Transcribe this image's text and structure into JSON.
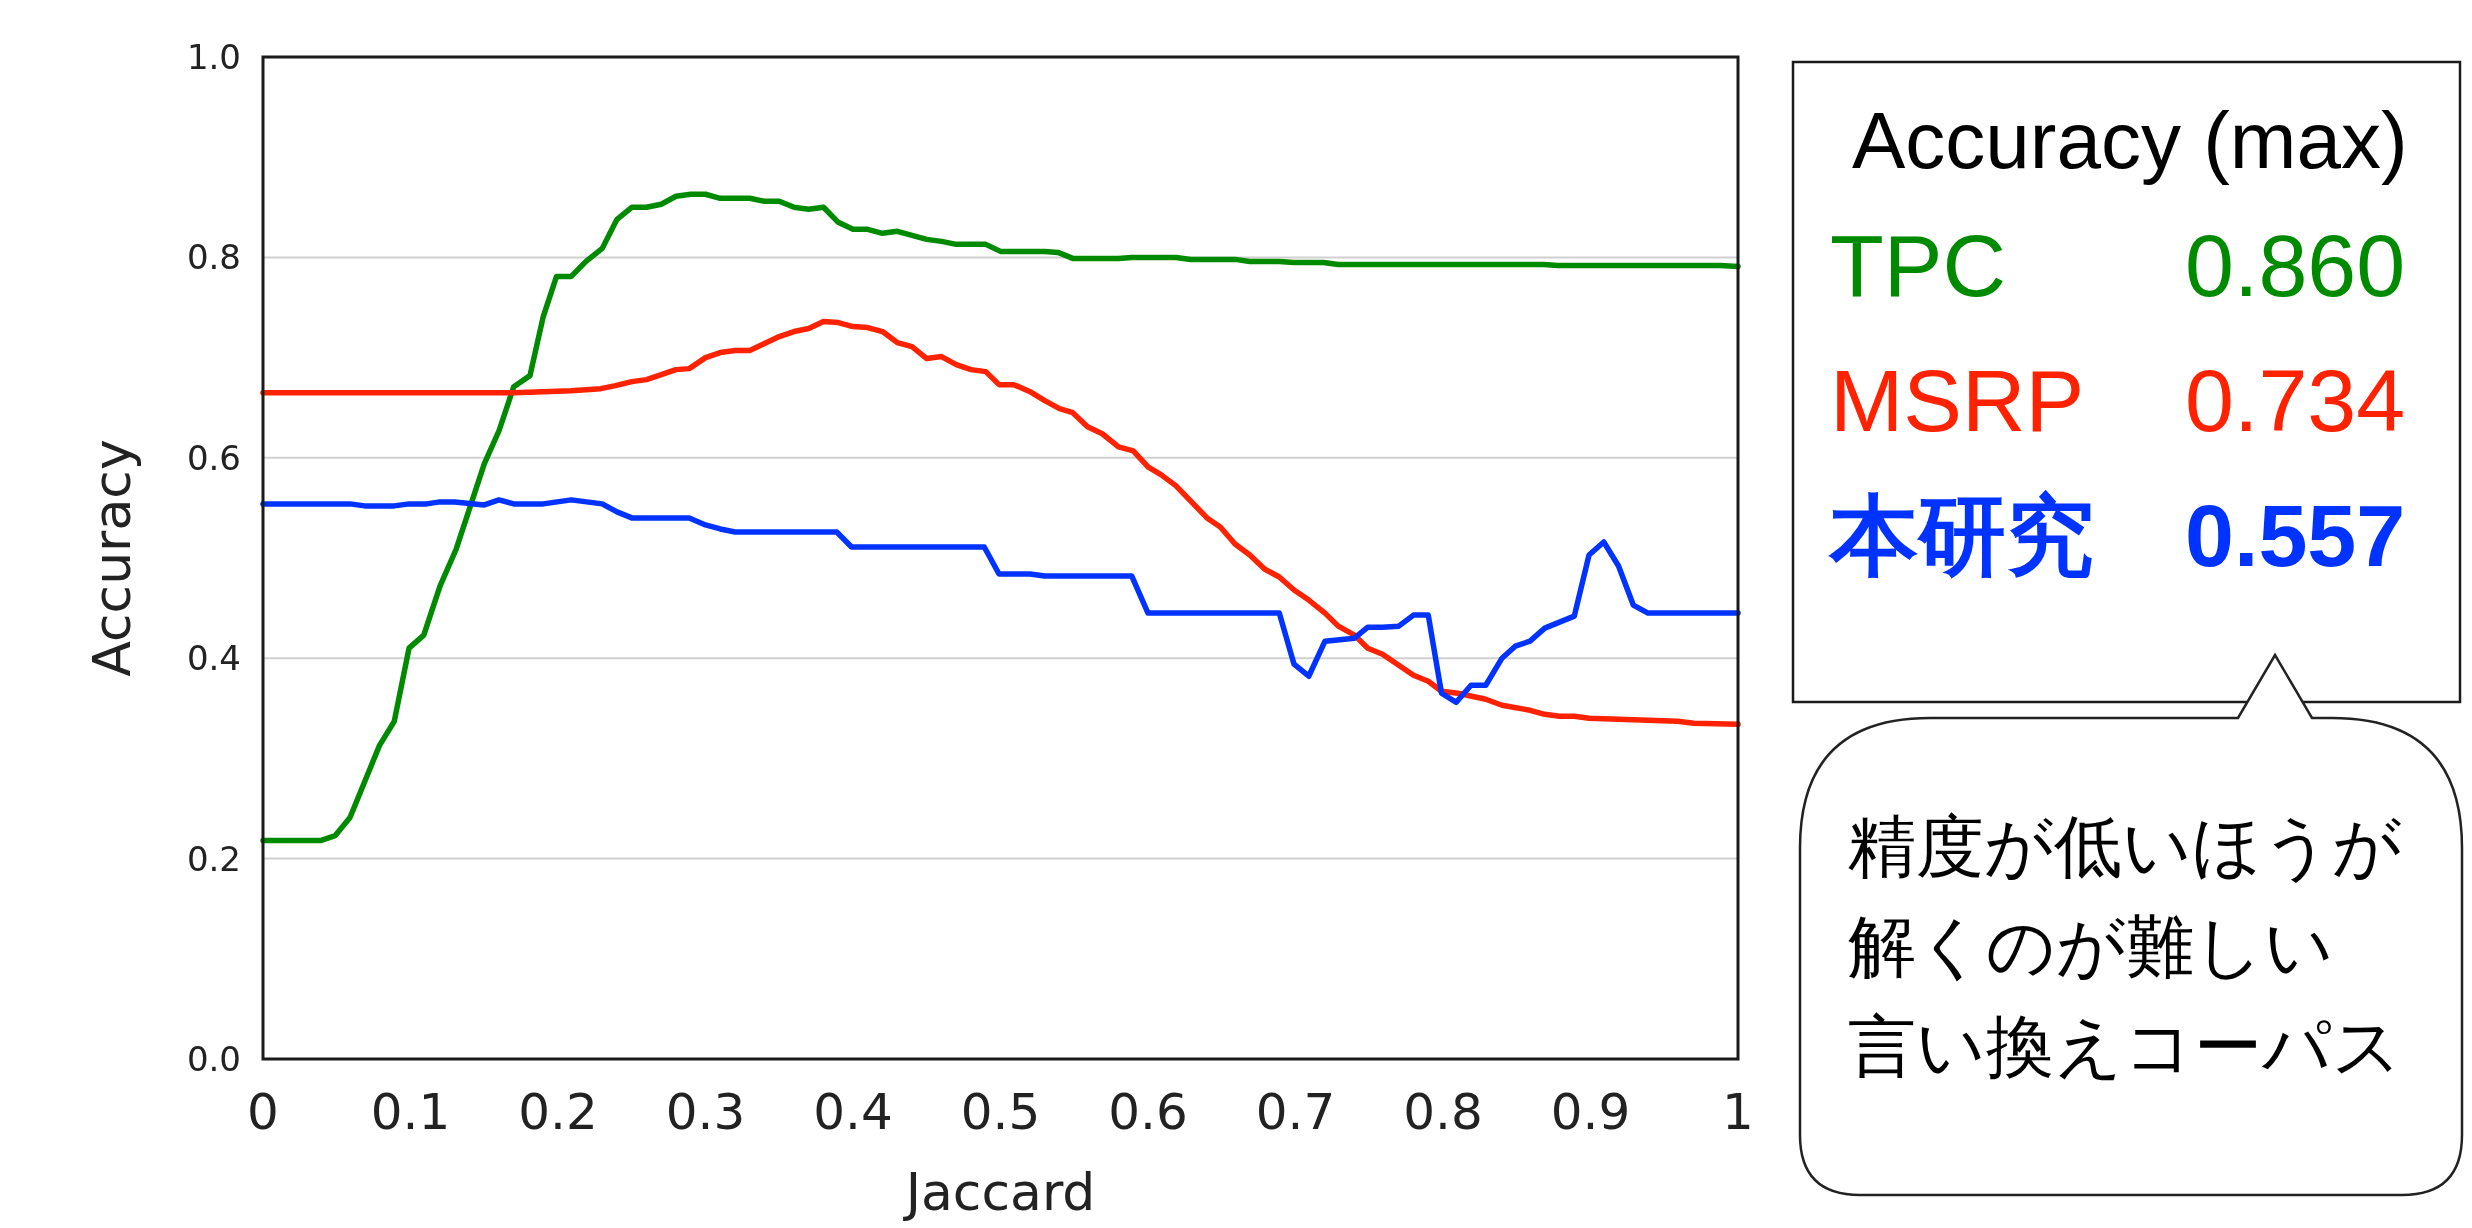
{
  "chart_data": {
    "type": "line",
    "xlabel": "Jaccard",
    "ylabel": "Accuracy",
    "legend_title": "Accuracy (max)",
    "legend": "right",
    "grid": "y",
    "line_style": "solid",
    "marker": "none",
    "xlim": [
      0,
      1
    ],
    "xticks": [
      0,
      0.1,
      0.2,
      0.3,
      0.4,
      0.5,
      0.6,
      0.7,
      0.8,
      0.9,
      1
    ],
    "ylim": [
      0,
      1
    ],
    "yticks": [
      {
        "value": 0,
        "label": "0.0"
      },
      {
        "value": 0.2,
        "label": "0.2"
      },
      {
        "value": 0.4,
        "label": "0.4"
      },
      {
        "value": 0.6,
        "label": "0.6"
      },
      {
        "value": 0.8,
        "label": "0.8"
      },
      {
        "value": 1,
        "label": "1.0"
      }
    ],
    "annotations": [
      "0.860",
      "0.734",
      "0.557",
      "精度が低いほうが",
      "解くのが難しい",
      "言い換えコーパス"
    ],
    "series": [
      {
        "name": "TPC",
        "color": "#008a00",
        "x": [
          0,
          0.039,
          0.049,
          0.059,
          0.079,
          0.089,
          0.099,
          0.109,
          0.12,
          0.131,
          0.15,
          0.16,
          0.17,
          0.181,
          0.19,
          0.199,
          0.209,
          0.219,
          0.23,
          0.24,
          0.25,
          0.26,
          0.27,
          0.28,
          0.29,
          0.3,
          0.31,
          0.33,
          0.34,
          0.35,
          0.36,
          0.37,
          0.38,
          0.39,
          0.4,
          0.41,
          0.42,
          0.43,
          0.44,
          0.45,
          0.46,
          0.47,
          0.49,
          0.5,
          0.53,
          0.539,
          0.549,
          0.58,
          0.589,
          0.619,
          0.629,
          0.659,
          0.669,
          0.689,
          0.699,
          0.719,
          0.729,
          0.868,
          0.878,
          0.988,
          1.0
        ],
        "values": [
          0.218,
          0.218,
          0.223,
          0.241,
          0.313,
          0.337,
          0.41,
          0.423,
          0.472,
          0.509,
          0.594,
          0.627,
          0.671,
          0.682,
          0.741,
          0.781,
          0.781,
          0.796,
          0.809,
          0.838,
          0.85,
          0.85,
          0.853,
          0.861,
          0.863,
          0.863,
          0.859,
          0.859,
          0.856,
          0.856,
          0.85,
          0.848,
          0.85,
          0.835,
          0.828,
          0.828,
          0.824,
          0.826,
          0.822,
          0.818,
          0.816,
          0.813,
          0.813,
          0.806,
          0.806,
          0.805,
          0.799,
          0.799,
          0.8,
          0.8,
          0.798,
          0.798,
          0.796,
          0.796,
          0.795,
          0.795,
          0.793,
          0.793,
          0.792,
          0.792,
          0.791
        ]
      },
      {
        "name": "MSRP",
        "color": "#ff2200",
        "x": [
          0,
          0.17,
          0.19,
          0.209,
          0.229,
          0.239,
          0.25,
          0.26,
          0.27,
          0.28,
          0.289,
          0.3,
          0.31,
          0.32,
          0.33,
          0.34,
          0.35,
          0.36,
          0.37,
          0.38,
          0.39,
          0.4,
          0.41,
          0.42,
          0.43,
          0.44,
          0.45,
          0.46,
          0.47,
          0.48,
          0.49,
          0.499,
          0.509,
          0.52,
          0.53,
          0.54,
          0.549,
          0.559,
          0.569,
          0.58,
          0.59,
          0.6,
          0.609,
          0.619,
          0.64,
          0.649,
          0.659,
          0.669,
          0.679,
          0.689,
          0.699,
          0.709,
          0.72,
          0.729,
          0.74,
          0.749,
          0.759,
          0.77,
          0.78,
          0.79,
          0.799,
          0.81,
          0.829,
          0.84,
          0.859,
          0.869,
          0.879,
          0.889,
          0.899,
          0.939,
          0.959,
          0.97,
          1.0
        ],
        "values": [
          0.665,
          0.665,
          0.666,
          0.667,
          0.669,
          0.672,
          0.676,
          0.678,
          0.683,
          0.688,
          0.689,
          0.7,
          0.705,
          0.707,
          0.707,
          0.714,
          0.721,
          0.726,
          0.729,
          0.736,
          0.735,
          0.731,
          0.73,
          0.726,
          0.715,
          0.711,
          0.699,
          0.701,
          0.693,
          0.688,
          0.686,
          0.673,
          0.673,
          0.666,
          0.657,
          0.649,
          0.645,
          0.631,
          0.624,
          0.611,
          0.607,
          0.591,
          0.583,
          0.572,
          0.54,
          0.531,
          0.514,
          0.503,
          0.489,
          0.481,
          0.468,
          0.458,
          0.445,
          0.432,
          0.423,
          0.41,
          0.404,
          0.393,
          0.383,
          0.377,
          0.367,
          0.365,
          0.359,
          0.353,
          0.348,
          0.344,
          0.342,
          0.342,
          0.34,
          0.338,
          0.337,
          0.335,
          0.334
        ]
      },
      {
        "name": "本研究",
        "color": "#0033ff",
        "x": [
          0,
          0.059,
          0.069,
          0.089,
          0.099,
          0.111,
          0.12,
          0.13,
          0.15,
          0.16,
          0.17,
          0.19,
          0.209,
          0.23,
          0.24,
          0.25,
          0.289,
          0.3,
          0.31,
          0.32,
          0.389,
          0.399,
          0.489,
          0.499,
          0.52,
          0.53,
          0.589,
          0.6,
          0.689,
          0.699,
          0.709,
          0.72,
          0.74,
          0.749,
          0.759,
          0.77,
          0.78,
          0.79,
          0.799,
          0.809,
          0.819,
          0.829,
          0.84,
          0.849,
          0.859,
          0.869,
          0.879,
          0.889,
          0.899,
          0.909,
          0.919,
          0.929,
          0.939,
          1.0
        ],
        "values": [
          0.554,
          0.554,
          0.552,
          0.552,
          0.554,
          0.554,
          0.556,
          0.556,
          0.553,
          0.558,
          0.554,
          0.554,
          0.558,
          0.554,
          0.546,
          0.54,
          0.54,
          0.533,
          0.529,
          0.526,
          0.526,
          0.511,
          0.511,
          0.484,
          0.484,
          0.482,
          0.482,
          0.445,
          0.445,
          0.394,
          0.382,
          0.417,
          0.42,
          0.431,
          0.431,
          0.432,
          0.443,
          0.443,
          0.365,
          0.356,
          0.373,
          0.373,
          0.4,
          0.412,
          0.417,
          0.43,
          0.436,
          0.442,
          0.503,
          0.516,
          0.492,
          0.453,
          0.445,
          0.445
        ]
      }
    ]
  }
}
